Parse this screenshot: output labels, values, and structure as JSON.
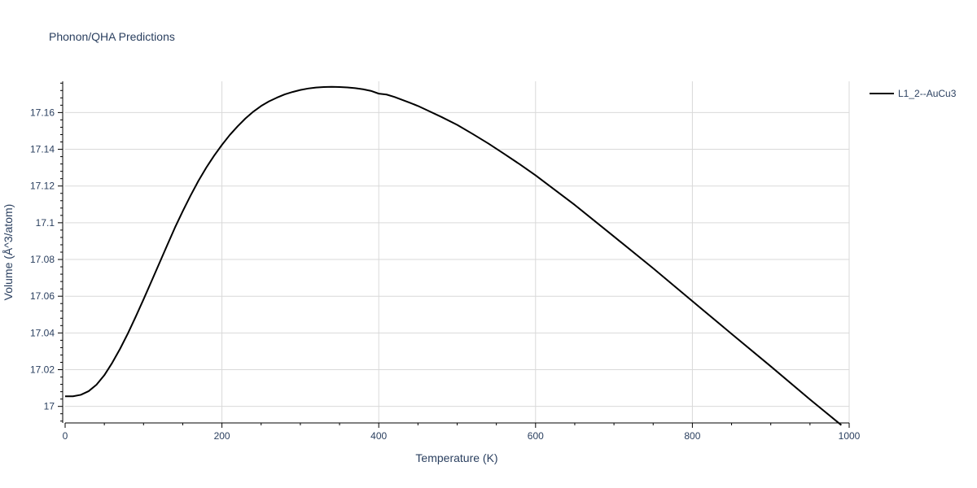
{
  "chart_data": {
    "type": "line",
    "title": "Phonon/QHA Predictions",
    "xlabel": "Temperature (K)",
    "ylabel": "Volume (Å^3/atom)",
    "xlim": [
      0,
      1000
    ],
    "ylim": [
      16.991,
      17.177
    ],
    "x_ticks": [
      0,
      200,
      400,
      600,
      800,
      1000
    ],
    "x_tick_labels": [
      "0",
      "200",
      "400",
      "600",
      "800",
      "1000"
    ],
    "y_ticks": [
      17.0,
      17.02,
      17.04,
      17.06,
      17.08,
      17.1,
      17.12,
      17.14,
      17.16
    ],
    "y_tick_labels": [
      "17",
      "17.02",
      "17.04",
      "17.06",
      "17.08",
      "17.1",
      "17.12",
      "17.14",
      "17.16"
    ],
    "grid": true,
    "legend_position": "top-right",
    "colors": {
      "series": "#000000",
      "grid": "#d9d9d9",
      "text": "#2a3f5f"
    },
    "series": [
      {
        "name": "L1_2--AuCu3",
        "x": [
          0,
          10,
          20,
          30,
          40,
          50,
          60,
          70,
          80,
          90,
          100,
          110,
          120,
          130,
          140,
          150,
          160,
          170,
          180,
          190,
          200,
          210,
          220,
          230,
          240,
          250,
          260,
          270,
          280,
          290,
          300,
          310,
          320,
          330,
          340,
          350,
          360,
          370,
          380,
          390,
          400,
          410,
          420,
          430,
          440,
          450,
          460,
          480,
          500,
          520,
          540,
          560,
          580,
          600,
          650,
          700,
          750,
          800,
          850,
          900,
          950,
          990
        ],
        "y": [
          17.0055,
          17.0055,
          17.0063,
          17.0083,
          17.0118,
          17.017,
          17.0237,
          17.0313,
          17.0397,
          17.0488,
          17.0583,
          17.068,
          17.0778,
          17.0876,
          17.0973,
          17.1063,
          17.1148,
          17.1228,
          17.13,
          17.1365,
          17.1424,
          17.1478,
          17.1525,
          17.1568,
          17.1605,
          17.1636,
          17.1661,
          17.1681,
          17.1699,
          17.1712,
          17.1723,
          17.1731,
          17.1736,
          17.1739,
          17.174,
          17.1739,
          17.1737,
          17.1733,
          17.1727,
          17.1718,
          17.1703,
          17.1698,
          17.1685,
          17.1669,
          17.1653,
          17.1636,
          17.1616,
          17.1576,
          17.1533,
          17.1483,
          17.1431,
          17.1375,
          17.1318,
          17.1258,
          17.1097,
          17.0925,
          17.0752,
          17.0573,
          17.0395,
          17.0218,
          17.0038,
          16.9898
        ]
      }
    ]
  }
}
